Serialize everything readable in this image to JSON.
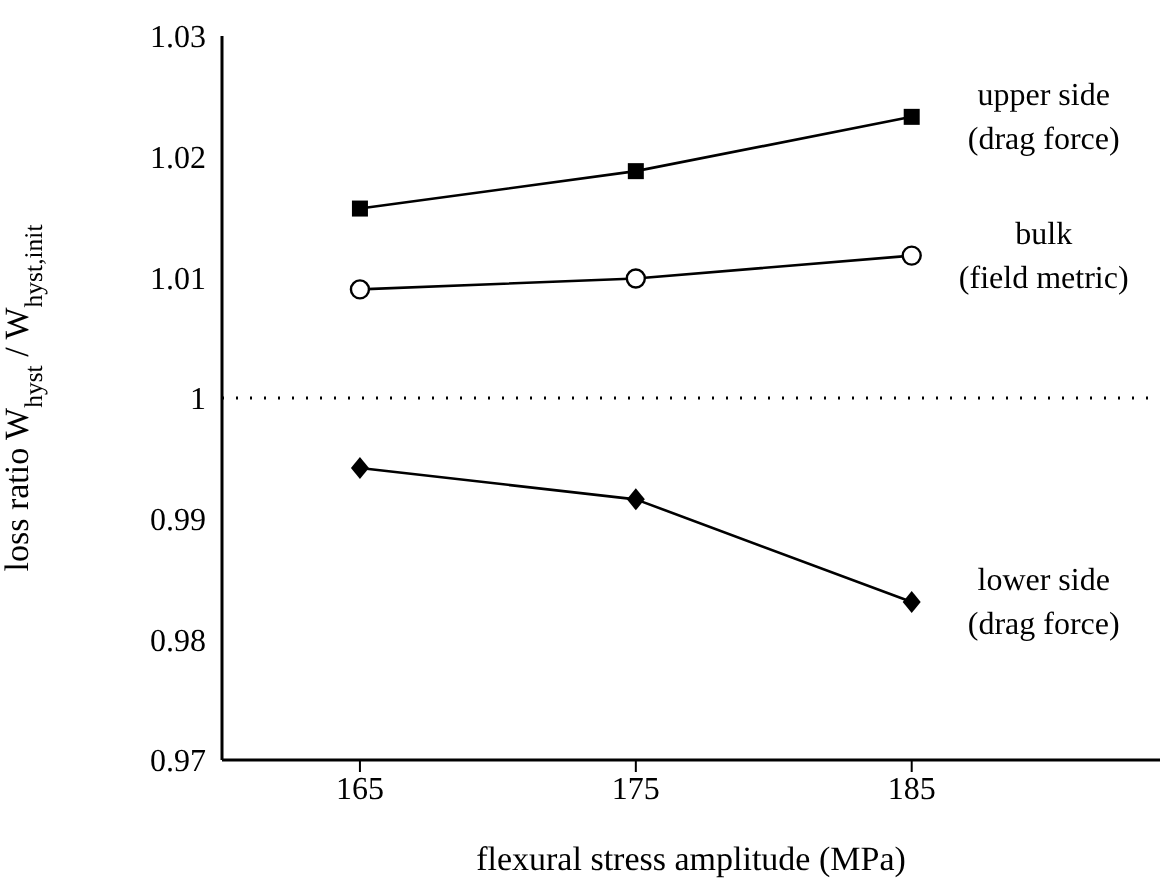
{
  "chart_data": {
    "type": "line",
    "xlabel": "flexural stress amplitude (MPa)",
    "ylabel": "loss ratio  W$_{hyst}$ / W$_{hyst,init}$",
    "x": [
      165,
      175,
      185
    ],
    "xlim": [
      160,
      194
    ],
    "xticks": [
      165,
      175,
      185
    ],
    "ylim": [
      0.97,
      1.03
    ],
    "yticks": [
      0.97,
      0.98,
      0.99,
      1,
      1.01,
      1.02,
      1.03
    ],
    "series": [
      {
        "name": "upper side (drag force)",
        "color": "#000000",
        "marker": "square",
        "values": [
          1.0157,
          1.0188,
          1.0233
        ]
      },
      {
        "name": "bulk (field metric)",
        "color": "#000000",
        "marker": "circle",
        "values": [
          1.009,
          1.0099,
          1.0118
        ]
      },
      {
        "name": "lower side (drag force)",
        "color": "#000000",
        "marker": "diamond",
        "values": [
          0.9942,
          0.9916,
          0.9831
        ]
      }
    ],
    "ref_lines": [
      {
        "axis": "y",
        "value": 1,
        "line_style": "dotted",
        "color": "#000000"
      }
    ],
    "grid": false,
    "legend": false,
    "line_style": "solid"
  }
}
